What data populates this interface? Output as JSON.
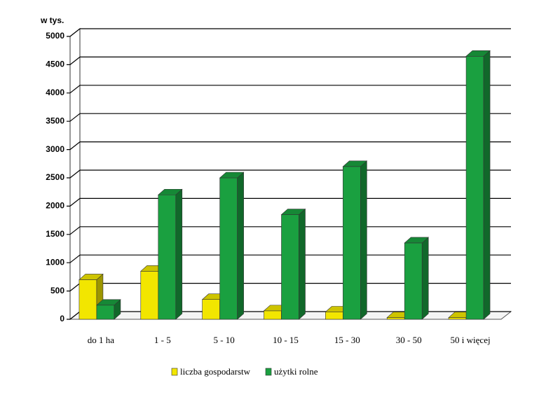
{
  "chart_data": {
    "type": "bar3d",
    "y_label": "w tys.",
    "categories": [
      "do 1 ha",
      "1 - 5",
      "5 - 10",
      "10 - 15",
      "15 - 30",
      "30 - 50",
      "50 i więcej"
    ],
    "series": [
      {
        "name": "liczba gospodarstw",
        "color": "#f2e600",
        "values": [
          700,
          850,
          350,
          150,
          130,
          30,
          30
        ]
      },
      {
        "name": "użytki rolne",
        "color": "#1aa040",
        "values": [
          250,
          2200,
          2500,
          1850,
          2700,
          1350,
          4650
        ]
      }
    ],
    "ylim": [
      0,
      5000
    ],
    "yticks": [
      0,
      500,
      1000,
      1500,
      2000,
      2500,
      3000,
      3500,
      4000,
      4500,
      5000
    ],
    "grid": true,
    "legend": "bottom"
  }
}
